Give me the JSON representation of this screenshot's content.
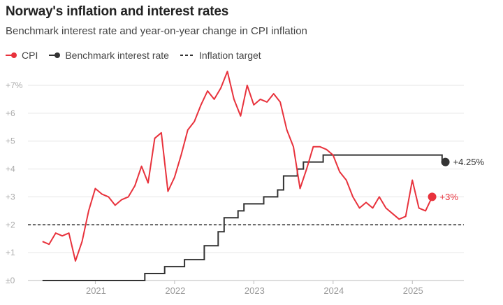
{
  "header": {
    "title": "Norway's inflation and interest rates",
    "subtitle": "Benchmark interest rate and year-on-year change in CPI inflation"
  },
  "legend": {
    "items": [
      {
        "label": "CPI",
        "color": "#e8323c"
      },
      {
        "label": "Benchmark interest rate",
        "color": "#333333"
      },
      {
        "label": "Inflation target",
        "color": "#333333"
      }
    ]
  },
  "end_labels": {
    "rate": "+4.25%",
    "cpi": "+3%"
  },
  "colors": {
    "cpi": "#e8323c",
    "rate": "#333333",
    "grid": "#e6e6e6",
    "axis": "#999999"
  },
  "chart_data": {
    "type": "line",
    "title": "Norway's inflation and interest rates",
    "subtitle": "Benchmark interest rate and year-on-year change in CPI inflation",
    "ylim": [
      0,
      8
    ],
    "yticks": [
      {
        "value": 0,
        "label": "±0"
      },
      {
        "value": 1,
        "label": "+1"
      },
      {
        "value": 2,
        "label": "+2"
      },
      {
        "value": 3,
        "label": "+3"
      },
      {
        "value": 4,
        "label": "+4"
      },
      {
        "value": 5,
        "label": "+5"
      },
      {
        "value": 6,
        "label": "+6"
      },
      {
        "value": 7,
        "label": "+7%"
      }
    ],
    "xlim": [
      2020.3,
      2025.58
    ],
    "xticks": [
      {
        "value": 2021,
        "label": "2021"
      },
      {
        "value": 2022,
        "label": "2022"
      },
      {
        "value": 2023,
        "label": "2023"
      },
      {
        "value": 2024,
        "label": "2024"
      },
      {
        "value": 2025,
        "label": "2025"
      }
    ],
    "inflation_target": 2,
    "series": [
      {
        "name": "CPI",
        "start": 2020.333,
        "step": 0.08333,
        "values": [
          1.4,
          1.3,
          1.7,
          1.6,
          1.7,
          0.7,
          1.4,
          2.5,
          3.3,
          3.1,
          3.0,
          2.7,
          2.9,
          3.0,
          3.4,
          4.1,
          3.5,
          5.1,
          5.3,
          3.2,
          3.7,
          4.5,
          5.4,
          5.7,
          6.3,
          6.8,
          6.5,
          6.9,
          7.5,
          6.5,
          5.9,
          7.0,
          6.3,
          6.5,
          6.4,
          6.7,
          6.4,
          5.4,
          4.8,
          3.3,
          4.0,
          4.8,
          4.8,
          4.7,
          4.5,
          3.9,
          3.6,
          3.0,
          2.6,
          2.8,
          2.6,
          3.0,
          2.6,
          2.4,
          2.2,
          2.3,
          3.6,
          2.6,
          2.5,
          3.0
        ]
      },
      {
        "name": "Benchmark interest rate",
        "steps": [
          {
            "date": 2020.333,
            "value": 0
          },
          {
            "date": 2021.625,
            "value": 0.25
          },
          {
            "date": 2021.875,
            "value": 0.5
          },
          {
            "date": 2022.125,
            "value": 0.75
          },
          {
            "date": 2022.375,
            "value": 1.25
          },
          {
            "date": 2022.55,
            "value": 1.75
          },
          {
            "date": 2022.625,
            "value": 2.25
          },
          {
            "date": 2022.8,
            "value": 2.5
          },
          {
            "date": 2022.875,
            "value": 2.75
          },
          {
            "date": 2023.125,
            "value": 3.0
          },
          {
            "date": 2023.3,
            "value": 3.25
          },
          {
            "date": 2023.375,
            "value": 3.75
          },
          {
            "date": 2023.55,
            "value": 4.0
          },
          {
            "date": 2023.625,
            "value": 4.25
          },
          {
            "date": 2023.875,
            "value": 4.5
          },
          {
            "date": 2025.375,
            "value": 4.25
          }
        ],
        "end": 2025.417
      }
    ]
  }
}
